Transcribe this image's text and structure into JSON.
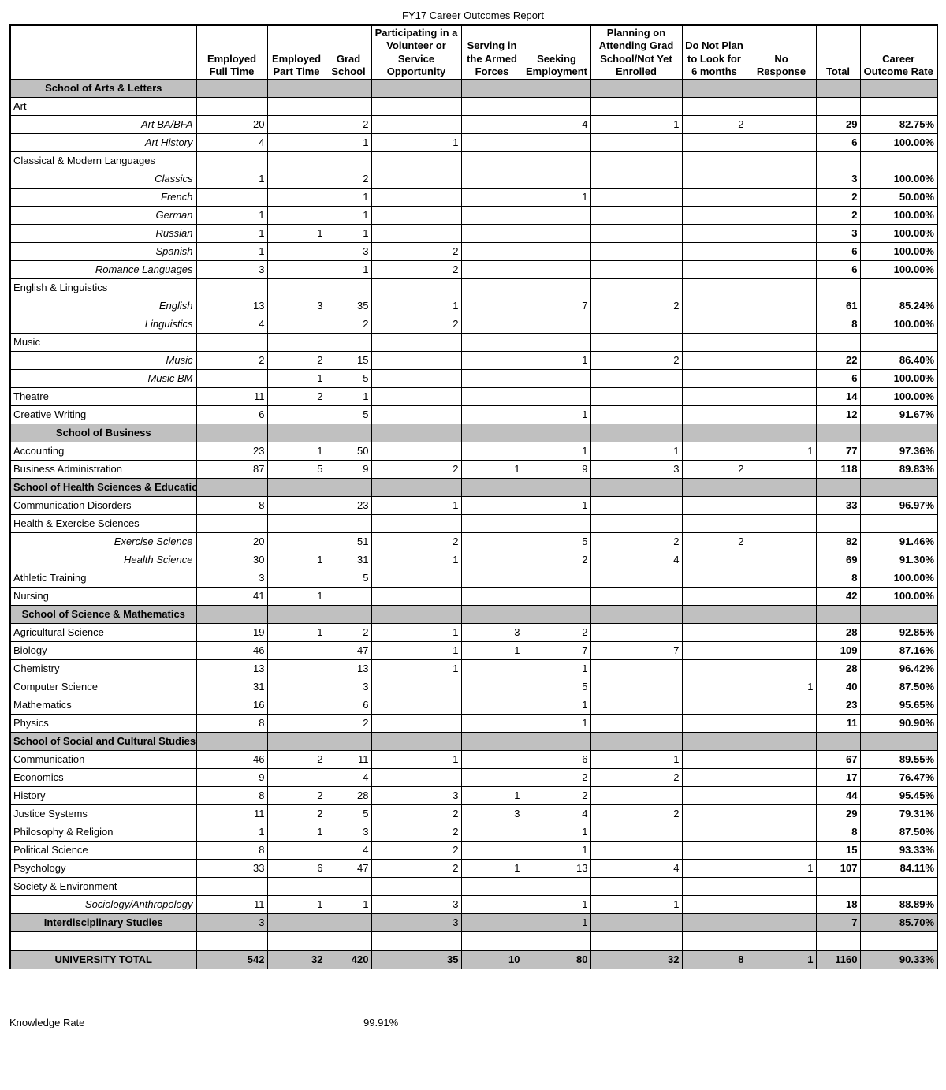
{
  "title": "FY17 Career Outcomes Report",
  "columns": [
    "",
    "Employed Full Time",
    "Employed Part Time",
    "Grad School",
    "Participating in a Volunteer or Service Opportunity",
    "Serving in the Armed Forces",
    "Seeking Employment",
    "Planning on Attending Grad School/Not Yet Enrolled",
    "Do Not Plan to Look for 6 months",
    "No Response",
    "Total",
    "Career Outcome Rate"
  ],
  "rows": [
    {
      "type": "section",
      "label": "School of Arts & Letters"
    },
    {
      "type": "group",
      "label": "Art"
    },
    {
      "type": "detail",
      "label": "Art BA/BFA",
      "v": [
        20,
        "",
        2,
        "",
        "",
        4,
        1,
        2,
        "",
        29,
        "82.75%"
      ]
    },
    {
      "type": "detail",
      "label": "Art History",
      "v": [
        4,
        "",
        1,
        1,
        "",
        "",
        "",
        "",
        "",
        6,
        "100.00%"
      ]
    },
    {
      "type": "group",
      "label": "Classical & Modern Languages"
    },
    {
      "type": "detail",
      "label": "Classics",
      "v": [
        1,
        "",
        2,
        "",
        "",
        "",
        "",
        "",
        "",
        3,
        "100.00%"
      ]
    },
    {
      "type": "detail",
      "label": "French",
      "v": [
        "",
        "",
        1,
        "",
        "",
        1,
        "",
        "",
        "",
        2,
        "50.00%"
      ]
    },
    {
      "type": "detail",
      "label": "German",
      "v": [
        1,
        "",
        1,
        "",
        "",
        "",
        "",
        "",
        "",
        2,
        "100.00%"
      ]
    },
    {
      "type": "detail",
      "label": "Russian",
      "v": [
        1,
        1,
        1,
        "",
        "",
        "",
        "",
        "",
        "",
        3,
        "100.00%"
      ]
    },
    {
      "type": "detail",
      "label": "Spanish",
      "v": [
        1,
        "",
        3,
        2,
        "",
        "",
        "",
        "",
        "",
        6,
        "100.00%"
      ]
    },
    {
      "type": "detail",
      "label": "Romance Languages",
      "v": [
        3,
        "",
        1,
        2,
        "",
        "",
        "",
        "",
        "",
        6,
        "100.00%"
      ]
    },
    {
      "type": "group",
      "label": "English & Linguistics"
    },
    {
      "type": "detail",
      "label": "English",
      "v": [
        13,
        3,
        35,
        1,
        "",
        7,
        2,
        "",
        "",
        61,
        "85.24%"
      ]
    },
    {
      "type": "detail",
      "label": "Linguistics",
      "v": [
        4,
        "",
        2,
        2,
        "",
        "",
        "",
        "",
        "",
        8,
        "100.00%"
      ]
    },
    {
      "type": "group",
      "label": "Music"
    },
    {
      "type": "detail",
      "label": "Music",
      "v": [
        2,
        2,
        15,
        "",
        "",
        1,
        2,
        "",
        "",
        22,
        "86.40%"
      ]
    },
    {
      "type": "detail",
      "label": "Music BM",
      "v": [
        "",
        1,
        5,
        "",
        "",
        "",
        "",
        "",
        "",
        6,
        "100.00%"
      ]
    },
    {
      "type": "group",
      "label": "Theatre",
      "v": [
        11,
        2,
        1,
        "",
        "",
        "",
        "",
        "",
        "",
        14,
        "100.00%"
      ]
    },
    {
      "type": "group",
      "label": "Creative Writing",
      "v": [
        6,
        "",
        5,
        "",
        "",
        1,
        "",
        "",
        "",
        12,
        "91.67%"
      ]
    },
    {
      "type": "section",
      "label": "School of Business"
    },
    {
      "type": "group",
      "label": "Accounting",
      "v": [
        23,
        1,
        50,
        "",
        "",
        1,
        1,
        "",
        1,
        77,
        "97.36%"
      ]
    },
    {
      "type": "group",
      "label": "Business Administration",
      "v": [
        87,
        5,
        9,
        2,
        1,
        9,
        3,
        2,
        "",
        118,
        "89.83%"
      ]
    },
    {
      "type": "section",
      "label": "School of Health Sciences & Education"
    },
    {
      "type": "group",
      "label": "Communication Disorders",
      "v": [
        8,
        "",
        23,
        1,
        "",
        1,
        "",
        "",
        "",
        33,
        "96.97%"
      ]
    },
    {
      "type": "group",
      "label": "Health & Exercise Sciences"
    },
    {
      "type": "detail",
      "label": "Exercise Science",
      "v": [
        20,
        "",
        51,
        2,
        "",
        5,
        2,
        2,
        "",
        82,
        "91.46%"
      ]
    },
    {
      "type": "detail",
      "label": "Health Science",
      "v": [
        30,
        1,
        31,
        1,
        "",
        2,
        4,
        "",
        "",
        69,
        "91.30%"
      ]
    },
    {
      "type": "group",
      "label": "Athletic Training",
      "v": [
        3,
        "",
        5,
        "",
        "",
        "",
        "",
        "",
        "",
        8,
        "100.00%"
      ]
    },
    {
      "type": "group",
      "label": "Nursing",
      "v": [
        41,
        1,
        "",
        "",
        "",
        "",
        "",
        "",
        "",
        42,
        "100.00%"
      ]
    },
    {
      "type": "section",
      "label": "School of Science & Mathematics"
    },
    {
      "type": "group",
      "label": "Agricultural Science",
      "v": [
        19,
        1,
        2,
        1,
        3,
        2,
        "",
        "",
        "",
        28,
        "92.85%"
      ]
    },
    {
      "type": "group",
      "label": "Biology",
      "v": [
        46,
        "",
        47,
        1,
        1,
        7,
        7,
        "",
        "",
        109,
        "87.16%"
      ]
    },
    {
      "type": "group",
      "label": "Chemistry",
      "v": [
        13,
        "",
        13,
        1,
        "",
        1,
        "",
        "",
        "",
        28,
        "96.42%"
      ]
    },
    {
      "type": "group",
      "label": "Computer Science",
      "v": [
        31,
        "",
        3,
        "",
        "",
        5,
        "",
        "",
        1,
        40,
        "87.50%"
      ]
    },
    {
      "type": "group",
      "label": "Mathematics",
      "v": [
        16,
        "",
        6,
        "",
        "",
        1,
        "",
        "",
        "",
        23,
        "95.65%"
      ]
    },
    {
      "type": "group",
      "label": "Physics",
      "v": [
        8,
        "",
        2,
        "",
        "",
        1,
        "",
        "",
        "",
        11,
        "90.90%"
      ]
    },
    {
      "type": "section",
      "label": "School of Social and Cultural Studies"
    },
    {
      "type": "group",
      "label": "Communication",
      "v": [
        46,
        2,
        11,
        1,
        "",
        6,
        1,
        "",
        "",
        67,
        "89.55%"
      ]
    },
    {
      "type": "group",
      "label": "Economics",
      "v": [
        9,
        "",
        4,
        "",
        "",
        2,
        2,
        "",
        "",
        17,
        "76.47%"
      ]
    },
    {
      "type": "group",
      "label": "History",
      "v": [
        8,
        2,
        28,
        3,
        1,
        2,
        "",
        "",
        "",
        44,
        "95.45%"
      ]
    },
    {
      "type": "group",
      "label": "Justice Systems",
      "v": [
        11,
        2,
        5,
        2,
        3,
        4,
        2,
        "",
        "",
        29,
        "79.31%"
      ]
    },
    {
      "type": "group",
      "label": "Philosophy & Religion",
      "v": [
        1,
        1,
        3,
        2,
        "",
        1,
        "",
        "",
        "",
        8,
        "87.50%"
      ]
    },
    {
      "type": "group",
      "label": "Political Science",
      "v": [
        8,
        "",
        4,
        2,
        "",
        1,
        "",
        "",
        "",
        15,
        "93.33%"
      ]
    },
    {
      "type": "group",
      "label": "Psychology",
      "v": [
        33,
        6,
        47,
        2,
        1,
        13,
        4,
        "",
        1,
        107,
        "84.11%"
      ]
    },
    {
      "type": "group",
      "label": "Society & Environment"
    },
    {
      "type": "detail",
      "label": "Sociology/Anthropology",
      "v": [
        11,
        1,
        1,
        3,
        "",
        1,
        1,
        "",
        "",
        18,
        "88.89%"
      ]
    },
    {
      "type": "interdisc",
      "label": "Interdisciplinary Studies",
      "v": [
        3,
        "",
        "",
        3,
        "",
        1,
        "",
        "",
        "",
        7,
        "85.70%"
      ]
    },
    {
      "type": "spacer",
      "label": ""
    },
    {
      "type": "total",
      "label": "UNIVERSITY TOTAL",
      "v": [
        542,
        32,
        420,
        35,
        10,
        80,
        32,
        8,
        1,
        1160,
        "90.33%"
      ]
    }
  ],
  "footer": {
    "label": "Knowledge Rate",
    "value": "99.91%"
  }
}
